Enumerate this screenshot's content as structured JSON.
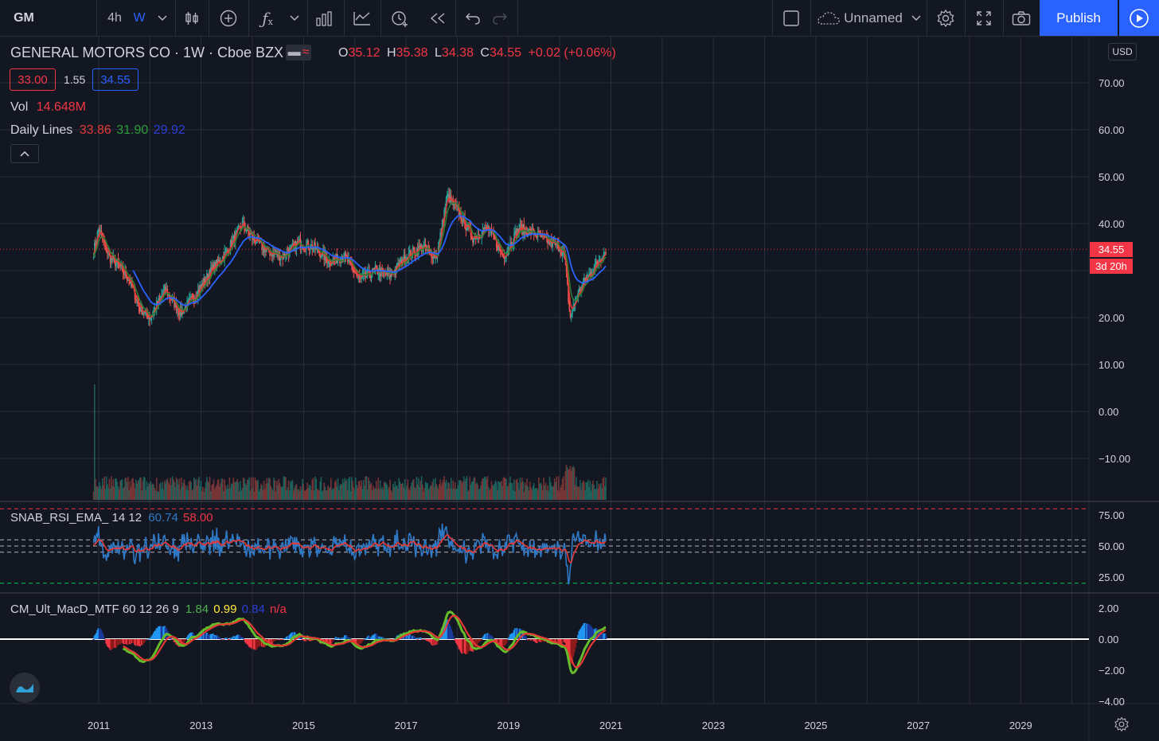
{
  "toolbar": {
    "symbol": "GM",
    "interval_4h": "4h",
    "interval_w": "W",
    "layout_name": "Unnamed",
    "publish_label": "Publish"
  },
  "legend": {
    "title": "GENERAL MOTORS CO · 1W · Cboe BZX",
    "o_label": "O",
    "o_value": "35.12",
    "h_label": "H",
    "h_value": "35.38",
    "l_label": "L",
    "l_value": "34.38",
    "c_label": "C",
    "c_value": "34.55",
    "change": "+0.02 (+0.06%)",
    "bid": "33.00",
    "spread": "1.55",
    "ask": "34.55",
    "vol_label": "Vol",
    "vol_value": "14.648M",
    "daily_lines_label": "Daily Lines",
    "daily_lines_v1": "33.86",
    "daily_lines_v2": "31.90",
    "daily_lines_v3": "29.92",
    "rsi_label": "SNAB_RSI_EMA_ 14 12",
    "rsi_v1": "60.74",
    "rsi_v2": "58.00",
    "macd_label": "CM_Ult_MacD_MTF 60 12 26 9",
    "macd_v1": "1.84",
    "macd_v2": "0.99",
    "macd_v3": "0.84",
    "macd_v4": "n/a"
  },
  "price_axis": {
    "currency": "USD",
    "ticks": [
      "70.00",
      "60.00",
      "50.00",
      "40.00",
      "20.00",
      "10.00",
      "0.00",
      "−10.00"
    ],
    "last_price": "34.55",
    "countdown": "3d 20h"
  },
  "rsi_axis": {
    "ticks": [
      "75.00",
      "50.00",
      "25.00"
    ]
  },
  "macd_axis": {
    "ticks": [
      "2.00",
      "0.00",
      "−2.00",
      "−4.00"
    ]
  },
  "time_axis": {
    "ticks": [
      "2011",
      "2013",
      "2015",
      "2017",
      "2019",
      "2021",
      "2023",
      "2025",
      "2027",
      "2029"
    ]
  },
  "colors": {
    "bg": "#131722",
    "grid": "#2a2e39",
    "up": "#26a69a",
    "down": "#ef5350",
    "ema_red": "#e53935",
    "ema_green": "#2e7d32",
    "ema_blue": "#2962ff",
    "rsi_line": "#2f7ac7",
    "accent": "#2962ff"
  },
  "chart_data": {
    "type": "line",
    "title": "GENERAL MOTORS CO · 1W · Cboe BZX",
    "xlabel": "",
    "ylabel": "",
    "x": [
      2010.9,
      2011.0,
      2011.2,
      2011.4,
      2011.6,
      2011.8,
      2012.0,
      2012.3,
      2012.6,
      2012.9,
      2013.2,
      2013.5,
      2013.8,
      2014.0,
      2014.3,
      2014.6,
      2014.9,
      2015.2,
      2015.5,
      2015.8,
      2016.1,
      2016.4,
      2016.7,
      2017.0,
      2017.3,
      2017.6,
      2017.8,
      2018.0,
      2018.3,
      2018.6,
      2018.9,
      2019.2,
      2019.5,
      2019.8,
      2020.0,
      2020.1,
      2020.2,
      2020.35,
      2020.5,
      2020.7,
      2020.9
    ],
    "series": [
      {
        "name": "close",
        "values": [
          34,
          39,
          33,
          31,
          28,
          22,
          20,
          26,
          21,
          25,
          30,
          34,
          40,
          37,
          34,
          33,
          36,
          35,
          32,
          33,
          28,
          30,
          29,
          33,
          35,
          33,
          46,
          43,
          37,
          39,
          33,
          39,
          38,
          36,
          35,
          33,
          20,
          25,
          28,
          31,
          34.55
        ]
      }
    ],
    "ylim": [
      -20,
      80
    ],
    "xlim": [
      2010.0,
      2030.3
    ],
    "grid": true,
    "rsi": {
      "ylim": [
        15,
        85
      ],
      "levels": [
        80,
        55,
        50,
        45,
        20
      ]
    },
    "macd": {
      "ylim": [
        -4.3,
        2.8
      ]
    }
  }
}
